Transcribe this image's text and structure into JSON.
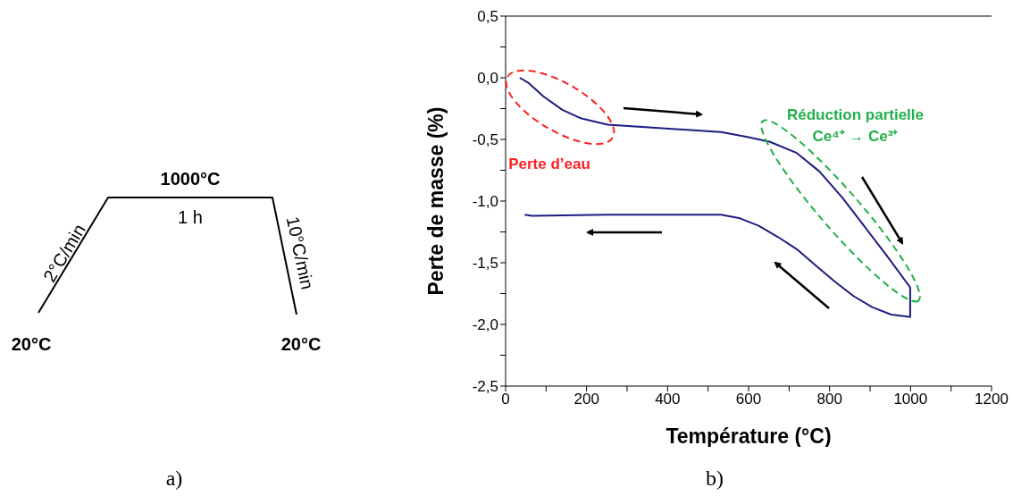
{
  "chart_data": [
    {
      "type": "other",
      "title": "a)",
      "annotations": [
        "1000°C",
        "1 h",
        "2°C/min",
        "10°C/min",
        "20°C",
        "20°C"
      ]
    },
    {
      "type": "line",
      "title": "b)",
      "xlabel": "Température (°C)",
      "ylabel": "Perte de masse (%)",
      "x": [
        35,
        56,
        93,
        140,
        187,
        252,
        345,
        439,
        532,
        597,
        653,
        719,
        775,
        831,
        887,
        943,
        999,
        999,
        952,
        905,
        859,
        812,
        765,
        719,
        672,
        625,
        579,
        532,
        439,
        252,
        65,
        47
      ],
      "series": [
        {
          "color": "#1c1c80",
          "values": [
            0.0,
            -0.04,
            -0.15,
            -0.26,
            -0.33,
            -0.38,
            -0.4,
            -0.42,
            -0.44,
            -0.48,
            -0.52,
            -0.61,
            -0.76,
            -0.97,
            -1.21,
            -1.45,
            -1.7,
            -1.94,
            -1.92,
            -1.86,
            -1.77,
            -1.65,
            -1.52,
            -1.39,
            -1.29,
            -1.2,
            -1.14,
            -1.11,
            -1.11,
            -1.11,
            -1.12,
            -1.11
          ]
        }
      ],
      "xlim": [
        0,
        1200
      ],
      "xticks": [
        0,
        {
          "value": 100,
          "label": null
        },
        200,
        {
          "value": 300,
          "label": null
        },
        400,
        {
          "value": 500,
          "label": null
        },
        600,
        {
          "value": 700,
          "label": null
        },
        800,
        {
          "value": 900,
          "label": null
        },
        1000,
        {
          "value": 1100,
          "label": null
        },
        1200
      ],
      "ylim": [
        -2.5,
        0.5
      ],
      "yticks": [
        {
          "value": -2.5,
          "label": "-2,5"
        },
        {
          "value": -2.25,
          "label": null
        },
        {
          "value": -2,
          "label": "-2,0"
        },
        {
          "value": -1.75,
          "label": null
        },
        {
          "value": -1.5,
          "label": "-1,5"
        },
        {
          "value": -1.25,
          "label": null
        },
        {
          "value": -1,
          "label": "-1,0"
        },
        {
          "value": -0.75,
          "label": null
        },
        {
          "value": -0.5,
          "label": "-0,5"
        },
        {
          "value": -0.25,
          "label": null
        },
        {
          "value": 0,
          "label": "0,0"
        },
        {
          "value": 0.25,
          "label": null
        },
        {
          "value": 0.5,
          "label": "0,5"
        }
      ],
      "annotations": [
        "Perte d’eau",
        "Réduction partielle Ce⁴⁺ → Ce³⁺"
      ]
    }
  ]
}
